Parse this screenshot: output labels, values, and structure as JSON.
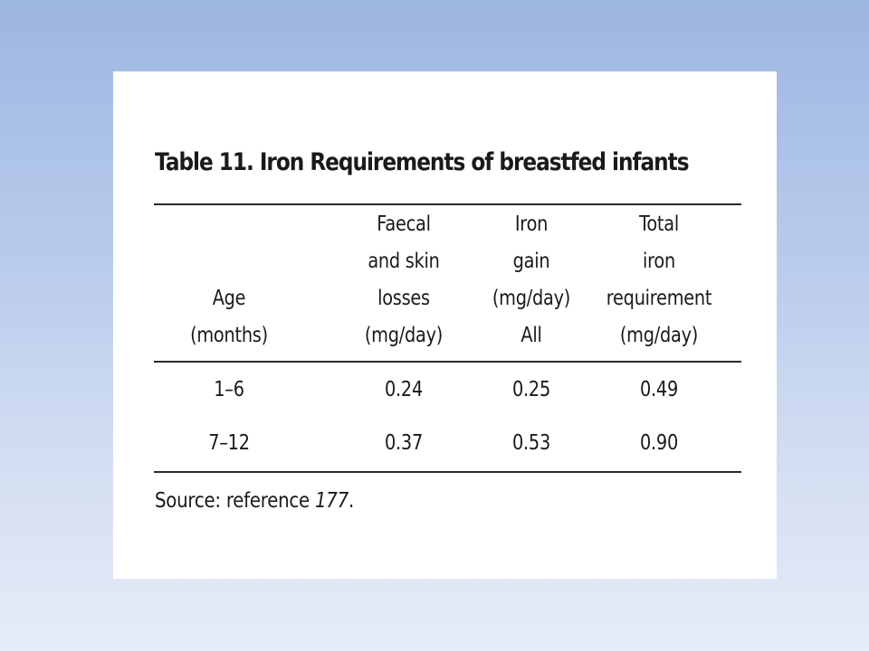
{
  "table": {
    "title": "Table 11. Iron Requirements of breastfed infants",
    "headers": [
      "Age\n(months)",
      "Faecal\nand skin\nlosses\n(mg/day)",
      "Iron\ngain\n(mg/day)\nAll",
      "Total\niron\nrequirement\n(mg/day)"
    ],
    "rows": [
      [
        "1–6",
        "0.24",
        "0.25",
        "0.49"
      ],
      [
        "7–12",
        "0.37",
        "0.53",
        "0.90"
      ]
    ]
  },
  "source": {
    "prefix": "Source: reference ",
    "ref": "177",
    "suffix": "."
  },
  "colors": {
    "background_top": "#9cb6e2",
    "background_bottom": "#e6ecf8",
    "card": "#ffffff",
    "text": "#1a1a1a"
  }
}
